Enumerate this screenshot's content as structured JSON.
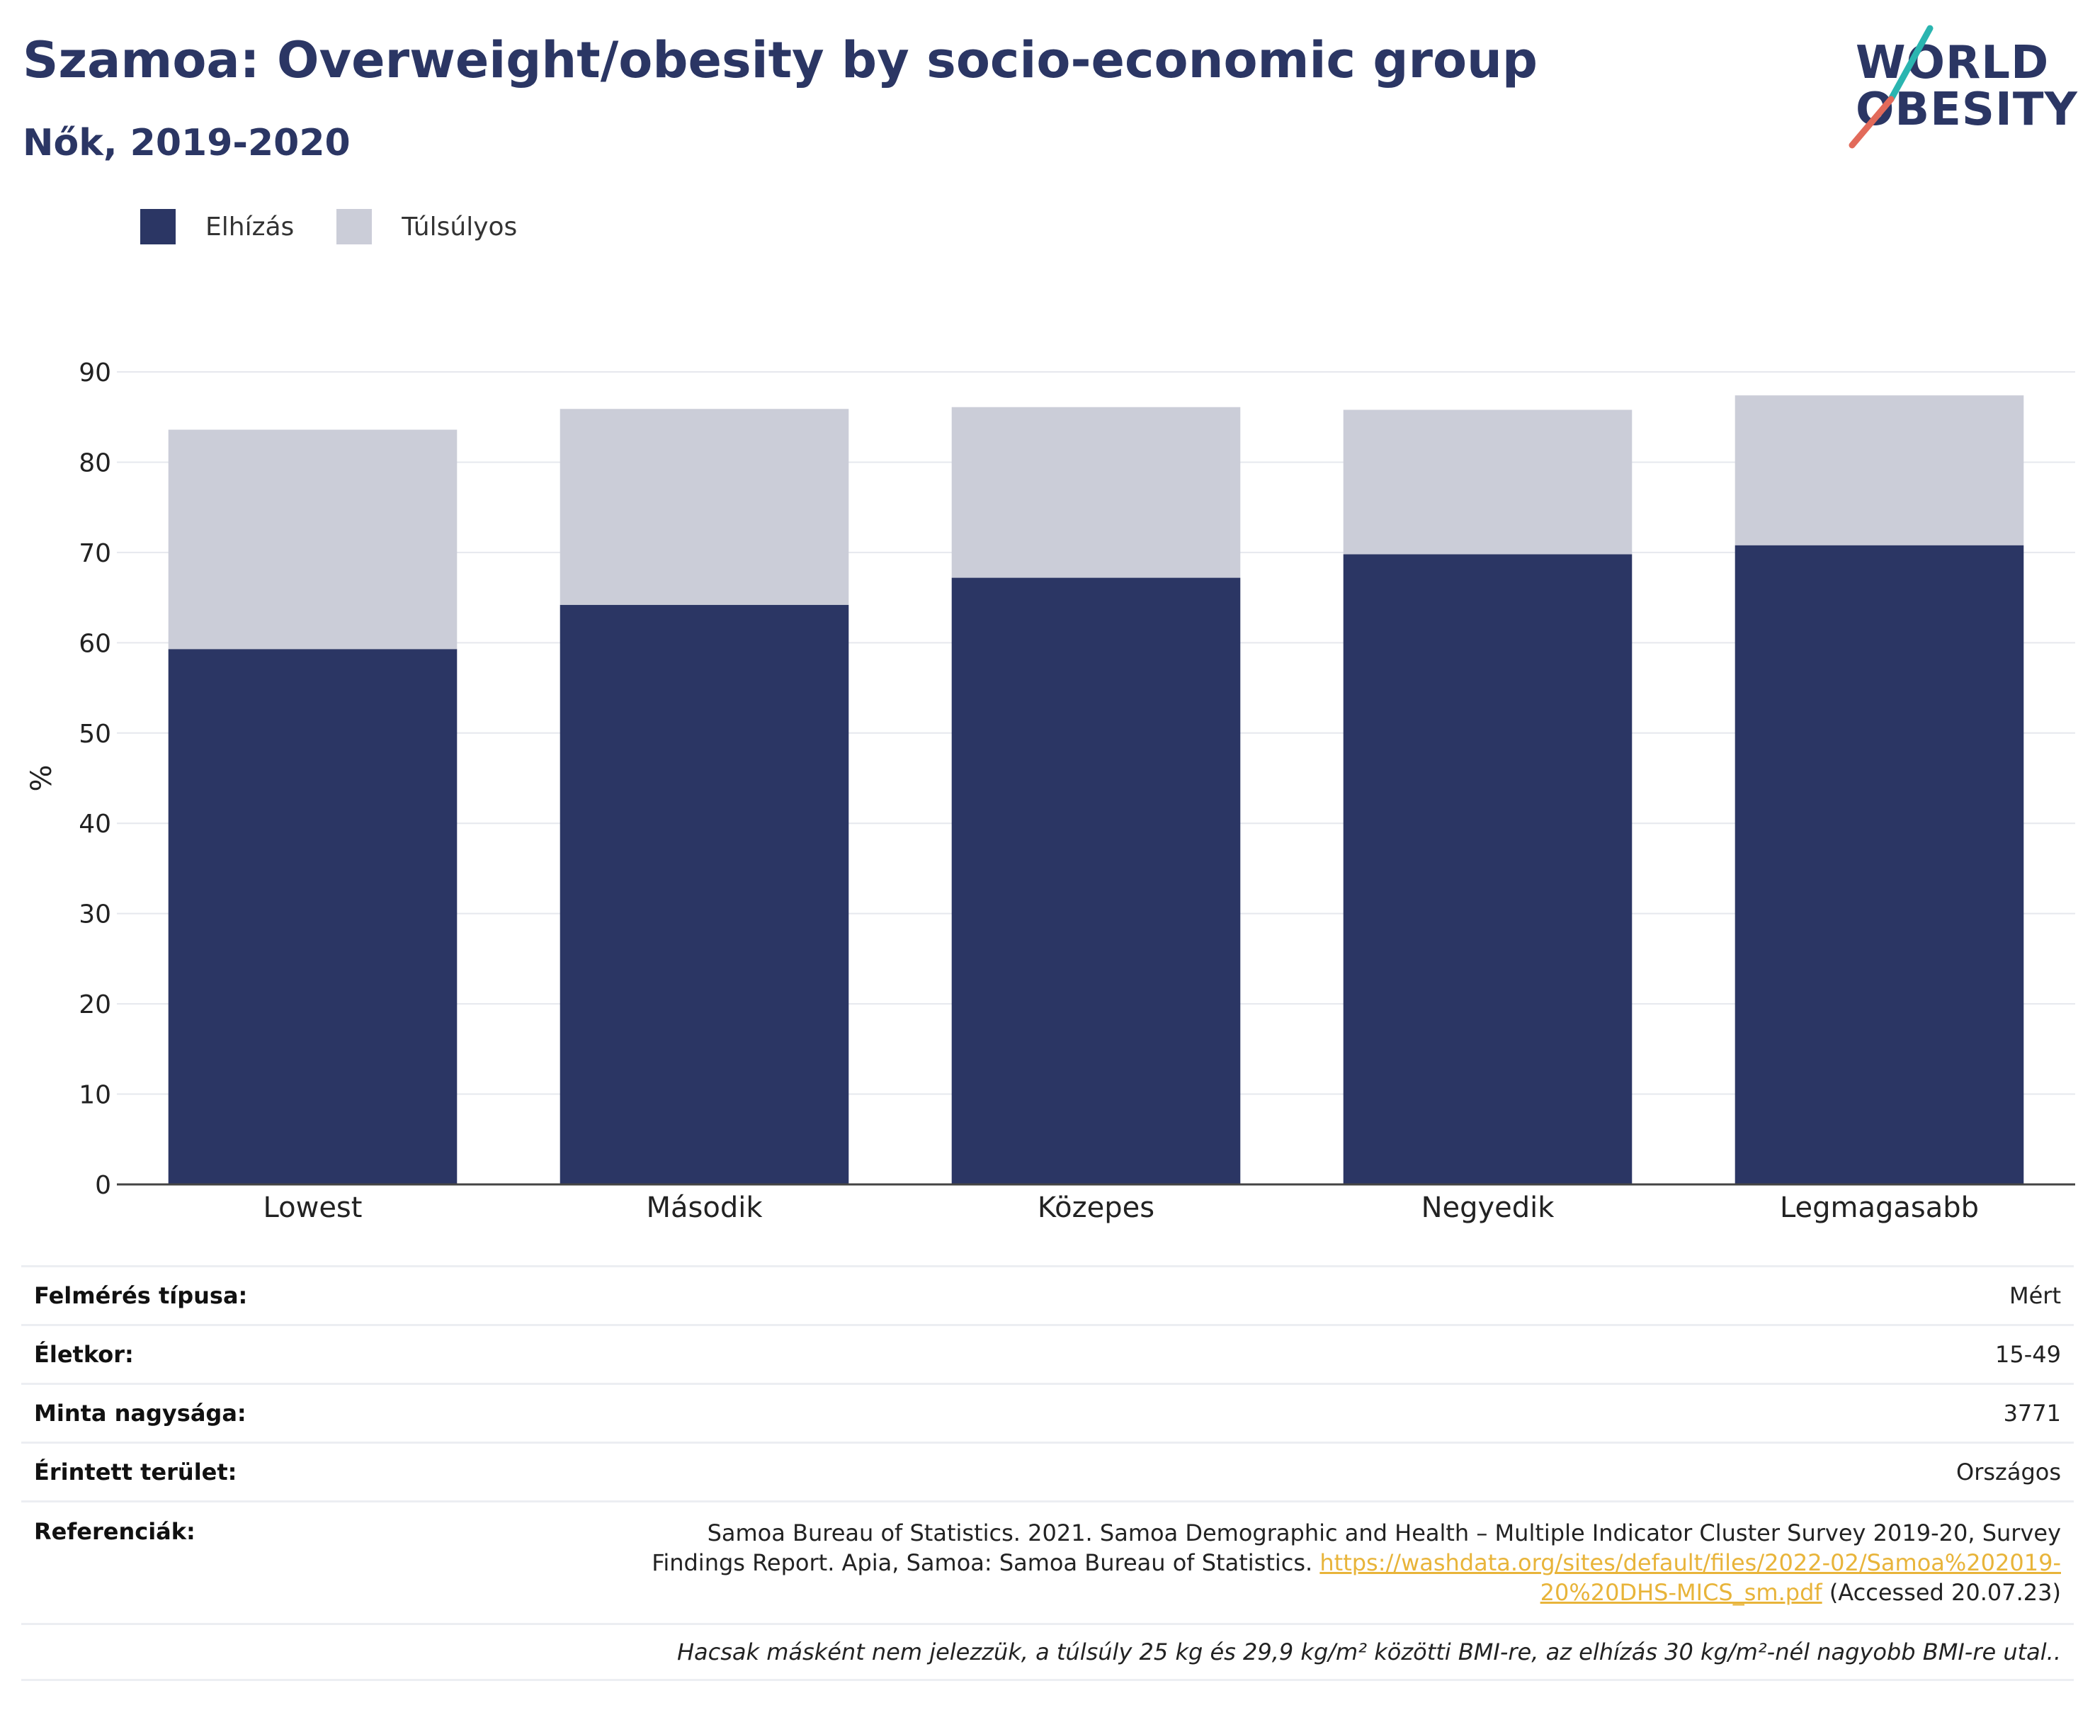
{
  "header": {
    "title": "Szamoa: Overweight/obesity by socio-economic group",
    "subtitle": "Nők, 2019-2020"
  },
  "logo": {
    "line1": "WORLD",
    "line2": "OBESITY",
    "accent_colors": [
      "#2ab5b0",
      "#e26a5a"
    ]
  },
  "colors": {
    "obesity": "#2b3664",
    "overweight": "#cbcdd8",
    "title": "#2b3664",
    "link": "#e8b43a"
  },
  "chart_data": {
    "type": "bar",
    "stacked": true,
    "categories": [
      "Lowest",
      "Második",
      "Közepes",
      "Negyedik",
      "Legmagasabb"
    ],
    "series": [
      {
        "name": "Elhízás",
        "values": [
          59.3,
          64.2,
          67.2,
          69.8,
          70.8
        ]
      },
      {
        "name": "Túlsúlyos",
        "values": [
          24.3,
          21.7,
          18.9,
          16.0,
          16.6
        ]
      }
    ],
    "ylabel": "%",
    "yticks": [
      0,
      10,
      20,
      30,
      40,
      50,
      60,
      70,
      80,
      90
    ],
    "ylim": [
      0,
      90
    ],
    "grid": true,
    "legend_position": "top-left"
  },
  "meta": {
    "rows": [
      {
        "label": "Felmérés típusa:",
        "value": "Mért"
      },
      {
        "label": "Életkor:",
        "value": "15-49"
      },
      {
        "label": "Minta nagysága:",
        "value": "3771"
      },
      {
        "label": "Érintett terület:",
        "value": "Országos"
      }
    ],
    "reference": {
      "label": "Referenciák:",
      "text_before": "Samoa Bureau of Statistics. 2021. Samoa Demographic and Health – Multiple Indicator Cluster Survey 2019-20, Survey Findings Report. Apia, Samoa: Samoa Bureau of Statistics. ",
      "link": "https://washdata.org/sites/default/files/2022-02/Samoa%202019-20%20DHS-MICS_sm.pdf",
      "text_after": " (Accessed 20.07.23)"
    },
    "note": "Hacsak másként nem jelezzük, a túlsúly 25 kg és 29,9 kg/m² közötti BMI-re, az elhízás 30 kg/m²-nél nagyobb BMI-re utal.."
  }
}
